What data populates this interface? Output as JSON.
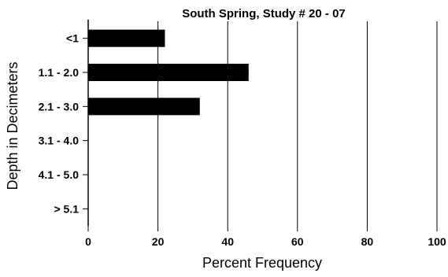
{
  "chart_data": {
    "type": "bar",
    "orientation": "horizontal",
    "title": "South Spring, Study # 20 - 07",
    "xlabel": "Percent Frequency",
    "ylabel": "Depth in Decimeters",
    "categories": [
      "<1",
      "1.1 - 2.0",
      "2.1 - 3.0",
      "3.1 - 4.0",
      "4.1 - 5.0",
      "> 5.1"
    ],
    "values": [
      22,
      46,
      32,
      0,
      0,
      0
    ],
    "xlim": [
      0,
      100
    ],
    "xticks": [
      0,
      20,
      40,
      60,
      80,
      100
    ],
    "grid": "vertical",
    "legend": "none",
    "bar_color": "#000000"
  }
}
